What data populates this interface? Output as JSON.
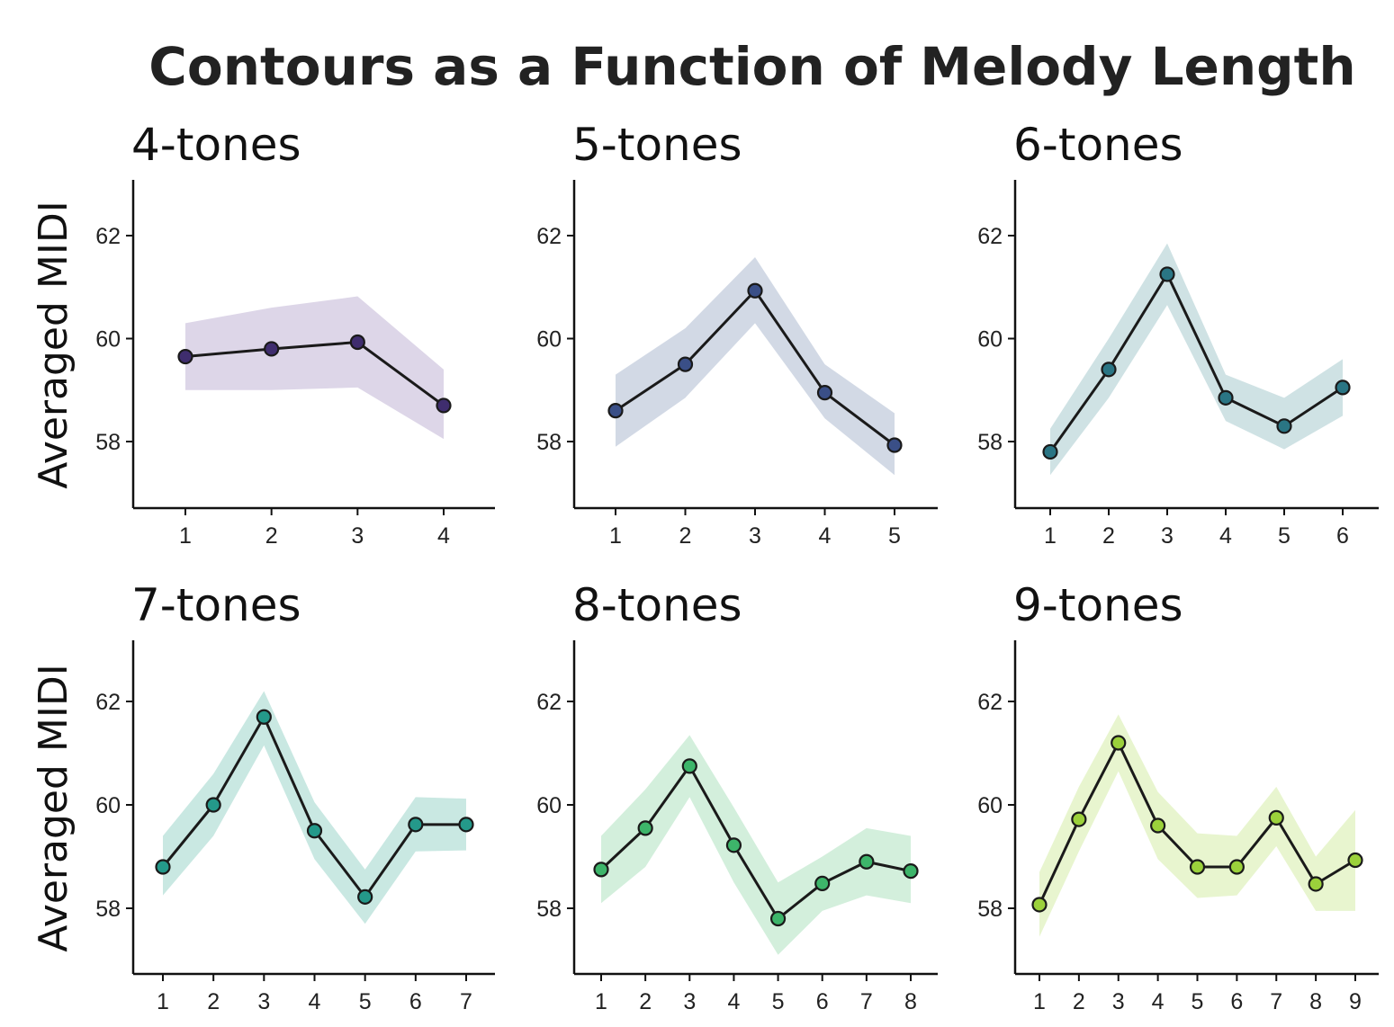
{
  "title": "Contours as a Function of Melody Length",
  "chart_data": [
    {
      "type": "line",
      "title": "4-tones",
      "xlabel": "",
      "ylabel": "Averaged MIDI",
      "x": [
        1,
        2,
        3,
        4
      ],
      "ylim": [
        56.8,
        63
      ],
      "yticks": [
        58,
        60,
        62
      ],
      "series": [
        {
          "values": [
            59.65,
            59.8,
            59.93,
            58.7
          ],
          "band_low": [
            59.0,
            59.0,
            59.05,
            58.05
          ],
          "band_high": [
            60.3,
            60.6,
            60.82,
            59.4
          ],
          "color": "#3f2d6e",
          "band_color": "#ddd6e8"
        }
      ],
      "grid": false,
      "legend": "none"
    },
    {
      "type": "line",
      "title": "5-tones",
      "xlabel": "",
      "ylabel": "",
      "x": [
        1,
        2,
        3,
        4,
        5
      ],
      "ylim": [
        56.8,
        63
      ],
      "yticks": [
        58,
        60,
        62
      ],
      "series": [
        {
          "values": [
            58.6,
            59.5,
            60.93,
            58.95,
            57.93
          ],
          "band_low": [
            57.9,
            58.85,
            60.3,
            58.45,
            57.35
          ],
          "band_high": [
            59.3,
            60.2,
            61.58,
            59.5,
            58.55
          ],
          "color": "#3a4f87",
          "band_color": "#d2d9e5"
        }
      ],
      "grid": false,
      "legend": "none"
    },
    {
      "type": "line",
      "title": "6-tones",
      "xlabel": "",
      "ylabel": "",
      "x": [
        1,
        2,
        3,
        4,
        5,
        6
      ],
      "ylim": [
        56.8,
        63
      ],
      "yticks": [
        58,
        60,
        62
      ],
      "series": [
        {
          "values": [
            57.8,
            59.4,
            61.25,
            58.85,
            58.3,
            59.05
          ],
          "band_low": [
            57.35,
            58.85,
            60.65,
            58.4,
            57.85,
            58.5
          ],
          "band_high": [
            58.25,
            60.0,
            61.85,
            59.3,
            58.85,
            59.6
          ],
          "color": "#2a7584",
          "band_color": "#cfe2e4"
        }
      ],
      "grid": false,
      "legend": "none"
    },
    {
      "type": "line",
      "title": "7-tones",
      "xlabel": "",
      "ylabel": "Averaged MIDI",
      "x": [
        1,
        2,
        3,
        4,
        5,
        6,
        7
      ],
      "ylim": [
        56.8,
        63
      ],
      "yticks": [
        58,
        60,
        62
      ],
      "series": [
        {
          "values": [
            58.8,
            60.0,
            61.7,
            59.5,
            58.22,
            59.62,
            59.62
          ],
          "band_low": [
            58.25,
            59.4,
            61.15,
            58.95,
            57.7,
            59.1,
            59.12
          ],
          "band_high": [
            59.4,
            60.6,
            62.2,
            60.05,
            58.75,
            60.15,
            60.12
          ],
          "color": "#24998a",
          "band_color": "#c9e8e2"
        }
      ],
      "grid": false,
      "legend": "none"
    },
    {
      "type": "line",
      "title": "8-tones",
      "xlabel": "",
      "ylabel": "",
      "x": [
        1,
        2,
        3,
        4,
        5,
        6,
        7,
        8
      ],
      "ylim": [
        56.8,
        63
      ],
      "yticks": [
        58,
        60,
        62
      ],
      "series": [
        {
          "values": [
            58.75,
            59.55,
            60.75,
            59.22,
            57.8,
            58.48,
            58.9,
            58.72
          ],
          "band_low": [
            58.1,
            58.8,
            60.15,
            58.5,
            57.1,
            57.95,
            58.25,
            58.1
          ],
          "band_high": [
            59.4,
            60.3,
            61.35,
            59.95,
            58.5,
            59.0,
            59.55,
            59.4
          ],
          "color": "#3db56a",
          "band_color": "#d3efdc"
        }
      ],
      "grid": false,
      "legend": "none"
    },
    {
      "type": "line",
      "title": "9-tones",
      "xlabel": "",
      "ylabel": "",
      "x": [
        1,
        2,
        3,
        4,
        5,
        6,
        7,
        8,
        9
      ],
      "ylim": [
        56.8,
        63
      ],
      "yticks": [
        58,
        60,
        62
      ],
      "series": [
        {
          "values": [
            58.07,
            59.72,
            61.2,
            59.6,
            58.8,
            58.8,
            59.75,
            58.47,
            58.93
          ],
          "band_low": [
            57.45,
            59.1,
            60.65,
            58.95,
            58.2,
            58.25,
            59.2,
            57.95,
            57.95
          ],
          "band_high": [
            58.7,
            60.35,
            61.75,
            60.25,
            59.45,
            59.4,
            60.35,
            59.0,
            59.9
          ],
          "color": "#9bd13b",
          "band_color": "#e8f5cf"
        }
      ],
      "grid": false,
      "legend": "none"
    }
  ]
}
